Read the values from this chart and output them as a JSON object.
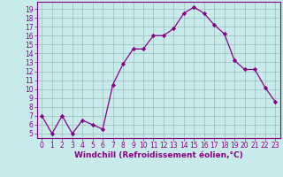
{
  "x": [
    0,
    1,
    2,
    3,
    4,
    5,
    6,
    7,
    8,
    9,
    10,
    11,
    12,
    13,
    14,
    15,
    16,
    17,
    18,
    19,
    20,
    21,
    22,
    23
  ],
  "y": [
    7,
    5,
    7,
    5,
    6.5,
    6,
    5.5,
    10.5,
    12.8,
    14.5,
    14.5,
    16,
    16,
    16.8,
    18.5,
    19.2,
    18.5,
    17.2,
    16.2,
    13.2,
    12.2,
    12.2,
    10.2,
    8.6
  ],
  "line_color": "#880088",
  "marker": "D",
  "markersize": 2.2,
  "linewidth": 0.9,
  "bg_color": "#c8eaea",
  "grid_color": "#9bbdbd",
  "xlabel": "Windchill (Refroidissement éolien,°C)",
  "xlim": [
    -0.5,
    23.5
  ],
  "ylim": [
    4.5,
    19.8
  ],
  "yticks": [
    5,
    6,
    7,
    8,
    9,
    10,
    11,
    12,
    13,
    14,
    15,
    16,
    17,
    18,
    19
  ],
  "xticks": [
    0,
    1,
    2,
    3,
    4,
    5,
    6,
    7,
    8,
    9,
    10,
    11,
    12,
    13,
    14,
    15,
    16,
    17,
    18,
    19,
    20,
    21,
    22,
    23
  ],
  "tick_color": "#880088",
  "tick_fontsize": 5.5,
  "xlabel_fontsize": 6.5
}
